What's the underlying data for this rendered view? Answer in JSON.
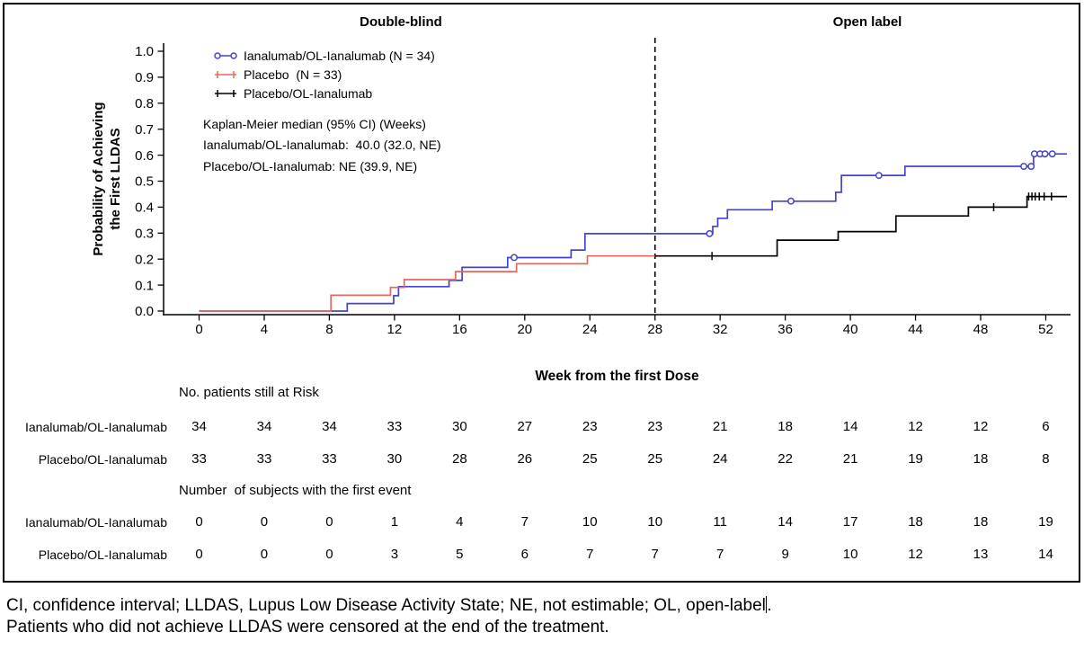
{
  "phase_labels": {
    "left": "Double-blind",
    "right": "Open label"
  },
  "legend": {
    "items": [
      {
        "label": "Ianalumab/OL-Ianalumab (N = 34)",
        "color": "#4343cd",
        "marker": "circle"
      },
      {
        "label": "Placebo  (N = 33)",
        "color": "#e5685e",
        "marker": "plus"
      },
      {
        "label": "Placebo/OL-Ianalumab",
        "color": "#000000",
        "marker": "plus"
      }
    ]
  },
  "km_median": {
    "line1": "Kaplan-Meier median (95% CI) (Weeks)",
    "line2": "Ianalumab/OL-Ianalumab:  40.0 (32.0, NE)",
    "line3": "Placebo/OL-Ianalumab: NE (39.9, NE)"
  },
  "chart_data": {
    "type": "line",
    "subtype": "kaplan-meier-step",
    "title": "",
    "x_axis": {
      "label": "Week from the first Dose",
      "min": 0,
      "max": 53.5,
      "ticks": [
        0,
        4,
        8,
        12,
        16,
        20,
        24,
        28,
        32,
        36,
        40,
        44,
        48,
        52
      ]
    },
    "y_axis": {
      "label_line1": "Probability of Achieving",
      "label_line2": "the First LLDAS",
      "min": 0.0,
      "max": 1.0,
      "tick_step": 0.1
    },
    "phase_divider_week": 28,
    "series": [
      {
        "name": "Ianalumab/OL-Ianalumab",
        "color": "#4343cd",
        "marker": "circle",
        "start": [
          0,
          0
        ],
        "steps": [
          [
            9.1,
            0.029
          ],
          [
            11.95,
            0.059
          ],
          [
            12.25,
            0.094
          ],
          [
            15.35,
            0.118
          ],
          [
            16.15,
            0.168
          ],
          [
            18.95,
            0.206
          ],
          [
            22.85,
            0.235
          ],
          [
            23.7,
            0.298
          ],
          [
            31.55,
            0.326
          ],
          [
            31.85,
            0.357
          ],
          [
            32.45,
            0.39
          ],
          [
            35.2,
            0.423
          ],
          [
            39.1,
            0.457
          ],
          [
            39.45,
            0.522
          ],
          [
            43.35,
            0.557
          ],
          [
            51.25,
            0.605
          ]
        ],
        "end_week": 53.3,
        "censors": [
          [
            19.35,
            0.206
          ],
          [
            31.35,
            0.298
          ],
          [
            36.35,
            0.423
          ],
          [
            41.75,
            0.522
          ],
          [
            50.65,
            0.557
          ],
          [
            51.1,
            0.557
          ],
          [
            51.3,
            0.605
          ],
          [
            51.65,
            0.605
          ],
          [
            51.95,
            0.605
          ],
          [
            52.4,
            0.605
          ]
        ]
      },
      {
        "name": "Placebo",
        "color": "#e5685e",
        "marker": "plus",
        "start": [
          0,
          0
        ],
        "steps": [
          [
            8.1,
            0.061
          ],
          [
            11.75,
            0.091
          ],
          [
            12.6,
            0.121
          ],
          [
            15.75,
            0.152
          ],
          [
            19.5,
            0.182
          ],
          [
            23.85,
            0.212
          ]
        ],
        "end_week": 28,
        "censors": []
      },
      {
        "name": "Placebo/OL-Ianalumab",
        "color": "#000000",
        "marker": "plus",
        "start": [
          28,
          0.212
        ],
        "steps": [
          [
            35.5,
            0.273
          ],
          [
            39.25,
            0.306
          ],
          [
            42.8,
            0.366
          ],
          [
            47.25,
            0.4
          ],
          [
            50.85,
            0.441
          ]
        ],
        "end_week": 53.3,
        "censors": [
          [
            31.5,
            0.212
          ],
          [
            48.8,
            0.4
          ],
          [
            50.95,
            0.441
          ],
          [
            51.15,
            0.441
          ],
          [
            51.35,
            0.441
          ],
          [
            51.6,
            0.441
          ],
          [
            51.9,
            0.441
          ],
          [
            52.35,
            0.441
          ]
        ]
      }
    ]
  },
  "risk_table": {
    "header": "No. patients still at Risk",
    "weeks": [
      0,
      4,
      8,
      12,
      16,
      20,
      24,
      28,
      32,
      36,
      40,
      44,
      48,
      52
    ],
    "rows": [
      {
        "label": "Ianalumab/OL-Ianalumab",
        "values": [
          34,
          34,
          34,
          33,
          30,
          27,
          23,
          23,
          21,
          18,
          14,
          12,
          12,
          6
        ]
      },
      {
        "label": "Placebo/OL-Ianalumab",
        "values": [
          33,
          33,
          33,
          30,
          28,
          26,
          25,
          25,
          24,
          22,
          21,
          19,
          18,
          8
        ]
      }
    ]
  },
  "event_table": {
    "header": "Number  of subjects with the first event",
    "rows": [
      {
        "label": "Ianalumab/OL-Ianalumab",
        "values": [
          0,
          0,
          0,
          1,
          4,
          7,
          10,
          10,
          11,
          14,
          17,
          18,
          18,
          19
        ]
      },
      {
        "label": "Placebo/OL-Ianalumab",
        "values": [
          0,
          0,
          0,
          3,
          5,
          6,
          7,
          7,
          7,
          9,
          10,
          12,
          13,
          14
        ]
      }
    ]
  },
  "footnotes": {
    "line1_pre": "CI, confidence interval; LLDAS, Lupus Low Disease Activity State; NE, not estimable; OL, open-label",
    "line1_post": ".",
    "line2": "Patients who did not achieve LLDAS were censored at the end of the treatment."
  }
}
